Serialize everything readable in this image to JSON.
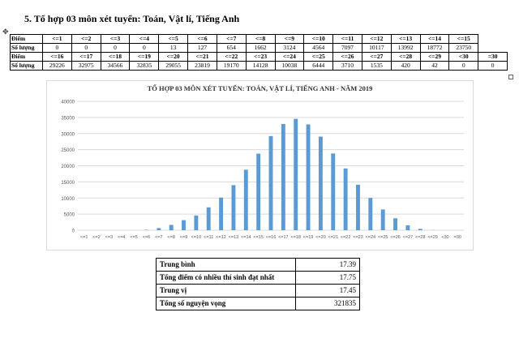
{
  "heading": "5. Tổ hợp 03 môn xét tuyển: Toán, Vật lí, Tiếng Anh",
  "dist_table": {
    "row1_label": "Điểm",
    "row1_scores": [
      "<=1",
      "<=2",
      "<=3",
      "<=4",
      "<=5",
      "<=6",
      "<=7",
      "<=8",
      "<=9",
      "<=10",
      "<=11",
      "<=12",
      "<=13",
      "<=14",
      "<=15"
    ],
    "row2_label": "Số lượng",
    "row2_counts": [
      "0",
      "0",
      "0",
      "0",
      "13",
      "127",
      "654",
      "1662",
      "3124",
      "4564",
      "7097",
      "10117",
      "13992",
      "18772",
      "23750"
    ],
    "row3_label": "Điểm",
    "row3_scores": [
      "<=16",
      "<=17",
      "<=18",
      "<=19",
      "<=20",
      "<=21",
      "<=22",
      "<=23",
      "<=24",
      "<=25",
      "<=26",
      "<=27",
      "<=28",
      "<=29",
      "<30",
      "=30"
    ],
    "row4_label": "Số lượng",
    "row4_counts": [
      "29226",
      "32975",
      "34566",
      "32835",
      "29055",
      "23819",
      "19170",
      "14128",
      "10038",
      "6444",
      "3710",
      "1535",
      "420",
      "42",
      "0",
      "0"
    ]
  },
  "chart_data": {
    "type": "bar",
    "title": "TỔ HỢP 03 MÔN XÉT TUYỂN: TOÁN, VẬT LÍ, TIẾNG ANH - NĂM 2019",
    "categories": [
      "<=1",
      "<=2",
      "<=3",
      "<=4",
      "<=5",
      "<=6",
      "<=7",
      "<=8",
      "<=9",
      "<=10",
      "<=11",
      "<=12",
      "<=13",
      "<=14",
      "<=15",
      "<=16",
      "<=17",
      "<=18",
      "<=19",
      "<=20",
      "<=21",
      "<=22",
      "<=23",
      "<=24",
      "<=25",
      "<=26",
      "<=27",
      "<=28",
      "<=29",
      "<30",
      "=30"
    ],
    "values": [
      0,
      0,
      0,
      0,
      13,
      127,
      654,
      1662,
      3124,
      4564,
      7097,
      10117,
      13992,
      18772,
      23750,
      29226,
      32975,
      34566,
      32835,
      29055,
      23819,
      19170,
      14128,
      10038,
      6444,
      3710,
      1535,
      420,
      42,
      0,
      0
    ],
    "ylim": [
      0,
      40000
    ],
    "yticks": [
      0,
      5000,
      10000,
      15000,
      20000,
      25000,
      30000,
      35000,
      40000
    ],
    "grid": true,
    "bar_color": "#5b9bd5"
  },
  "stats": {
    "rows": [
      {
        "label": "Trung bình",
        "value": "17.39"
      },
      {
        "label": "Tổng điểm có nhiều thí sinh đạt nhất",
        "value": "17.75"
      },
      {
        "label": "Trung vị",
        "value": "17.45"
      },
      {
        "label": "Tổng số nguyện vọng",
        "value": "321835"
      }
    ]
  },
  "icons": {
    "table_anchor": "move-handle-icon"
  }
}
